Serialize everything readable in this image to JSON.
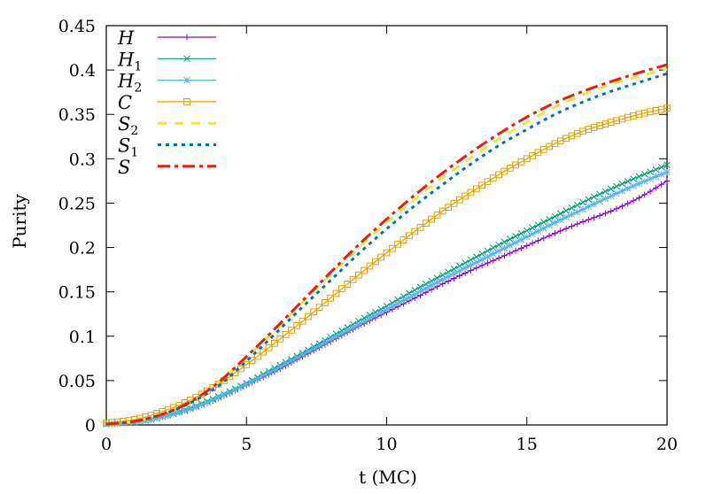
{
  "chart_data": {
    "type": "line",
    "title": "",
    "xlabel": "t (MC)",
    "ylabel": "Purity",
    "xlim": [
      0,
      20
    ],
    "ylim": [
      0,
      0.45
    ],
    "xticks": [
      0,
      5,
      10,
      15,
      20
    ],
    "xtick_labels": [
      "0",
      "5",
      "10",
      "15",
      "20"
    ],
    "yticks": [
      0,
      0.05,
      0.1,
      0.15,
      0.2,
      0.25,
      0.3,
      0.35,
      0.4,
      0.45
    ],
    "ytick_labels": [
      "0",
      "0.05",
      "0.1",
      "0.15",
      "0.2",
      "0.25",
      "0.3",
      "0.35",
      "0.4",
      "0.45"
    ],
    "grid": false,
    "legend_position": "top-left",
    "series": [
      {
        "name": "H",
        "label_main": "H",
        "label_sub": "",
        "color": "#9400d3",
        "dash": "solid",
        "marker": "plus",
        "x": [
          0,
          1,
          2,
          3,
          4,
          5,
          6,
          7,
          8,
          9,
          10,
          11,
          12,
          13,
          14,
          15,
          16,
          17,
          18,
          19,
          20
        ],
        "y": [
          0.001,
          0.003,
          0.009,
          0.018,
          0.03,
          0.045,
          0.06,
          0.077,
          0.094,
          0.111,
          0.127,
          0.143,
          0.159,
          0.174,
          0.188,
          0.202,
          0.216,
          0.229,
          0.241,
          0.256,
          0.275
        ]
      },
      {
        "name": "H_1",
        "label_main": "H",
        "label_sub": "1",
        "color": "#009e73",
        "dash": "solid",
        "marker": "cross",
        "x": [
          0,
          1,
          2,
          3,
          4,
          5,
          6,
          7,
          8,
          9,
          10,
          11,
          12,
          13,
          14,
          15,
          16,
          17,
          18,
          19,
          20
        ],
        "y": [
          0.001,
          0.003,
          0.009,
          0.019,
          0.032,
          0.047,
          0.064,
          0.081,
          0.099,
          0.117,
          0.134,
          0.152,
          0.169,
          0.186,
          0.203,
          0.219,
          0.235,
          0.251,
          0.266,
          0.28,
          0.293
        ]
      },
      {
        "name": "H_2",
        "label_main": "H",
        "label_sub": "2",
        "color": "#56b4e9",
        "dash": "solid",
        "marker": "star",
        "x": [
          0,
          1,
          2,
          3,
          4,
          5,
          6,
          7,
          8,
          9,
          10,
          11,
          12,
          13,
          14,
          15,
          16,
          17,
          18,
          19,
          20
        ],
        "y": [
          0.001,
          0.003,
          0.009,
          0.018,
          0.031,
          0.046,
          0.062,
          0.079,
          0.096,
          0.113,
          0.13,
          0.147,
          0.164,
          0.18,
          0.196,
          0.212,
          0.228,
          0.243,
          0.258,
          0.272,
          0.285
        ]
      },
      {
        "name": "C",
        "label_main": "C",
        "label_sub": "",
        "color": "#e69f00",
        "dash": "solid",
        "marker": "square",
        "x": [
          0,
          1,
          2,
          3,
          4,
          5,
          6,
          7,
          8,
          9,
          10,
          11,
          12,
          13,
          14,
          15,
          16,
          17,
          18,
          19,
          20
        ],
        "y": [
          0.002,
          0.006,
          0.015,
          0.028,
          0.046,
          0.068,
          0.092,
          0.117,
          0.143,
          0.169,
          0.194,
          0.218,
          0.241,
          0.262,
          0.282,
          0.3,
          0.317,
          0.331,
          0.341,
          0.35,
          0.357
        ]
      },
      {
        "name": "S_2",
        "label_main": "S",
        "label_sub": "2",
        "color": "#f0e442",
        "dash": "dashed",
        "marker": "none",
        "x": [
          0,
          1,
          2,
          3,
          4,
          5,
          6,
          7,
          8,
          9,
          10,
          11,
          12,
          13,
          14,
          15,
          16,
          17,
          18,
          19,
          20
        ],
        "y": [
          0.001,
          0.004,
          0.012,
          0.026,
          0.048,
          0.076,
          0.106,
          0.138,
          0.17,
          0.2,
          0.228,
          0.254,
          0.279,
          0.301,
          0.322,
          0.341,
          0.358,
          0.372,
          0.384,
          0.393,
          0.401
        ]
      },
      {
        "name": "S_1",
        "label_main": "S",
        "label_sub": "1",
        "color": "#0072b2",
        "dash": "dotted",
        "marker": "none",
        "x": [
          0,
          1,
          2,
          3,
          4,
          5,
          6,
          7,
          8,
          9,
          10,
          11,
          12,
          13,
          14,
          15,
          16,
          17,
          18,
          19,
          20
        ],
        "y": [
          0.001,
          0.004,
          0.012,
          0.025,
          0.044,
          0.072,
          0.102,
          0.133,
          0.163,
          0.193,
          0.221,
          0.247,
          0.271,
          0.294,
          0.315,
          0.333,
          0.35,
          0.364,
          0.376,
          0.386,
          0.396
        ]
      },
      {
        "name": "S",
        "label_main": "S",
        "label_sub": "",
        "color": "#e51e10",
        "dash": "dashdot",
        "marker": "none",
        "x": [
          0,
          1,
          2,
          3,
          4,
          5,
          6,
          7,
          8,
          9,
          10,
          11,
          12,
          13,
          14,
          15,
          16,
          17,
          18,
          19,
          20
        ],
        "y": [
          0.001,
          0.004,
          0.012,
          0.026,
          0.048,
          0.077,
          0.108,
          0.14,
          0.172,
          0.203,
          0.232,
          0.259,
          0.284,
          0.307,
          0.328,
          0.347,
          0.363,
          0.376,
          0.387,
          0.397,
          0.406
        ]
      }
    ]
  }
}
